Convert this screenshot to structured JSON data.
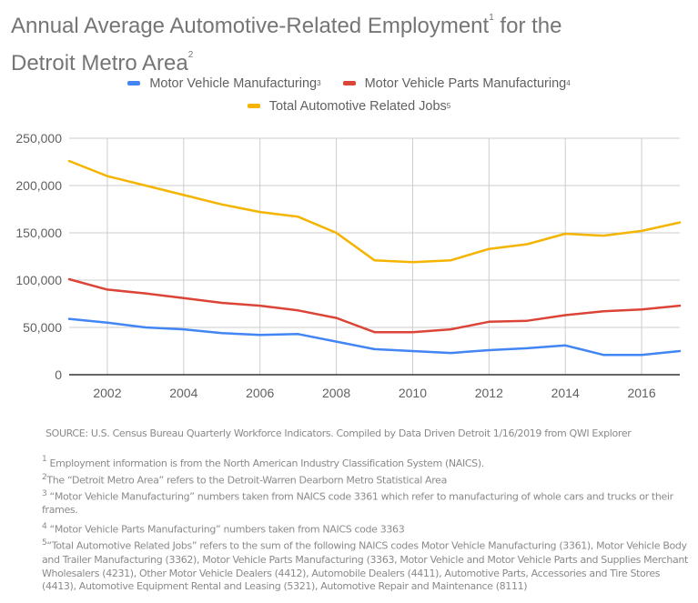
{
  "title": {
    "line1": "Annual Average Automotive-Related Employment",
    "sup1": "1",
    "line1_end": " for the",
    "line2": "Detroit Metro Area",
    "sup2": "2"
  },
  "legend": [
    {
      "label": "Motor Vehicle Manufacturing",
      "sup": "3",
      "color": "#4285f4"
    },
    {
      "label": "Motor Vehicle Parts Manufacturing",
      "sup": "4",
      "color": "#db4437"
    },
    {
      "label": "Total Automotive Related Jobs",
      "sup": "5",
      "color": "#f4b400"
    }
  ],
  "chart_data": {
    "type": "line",
    "title": "Annual Average Automotive-Related Employment for the Detroit Metro Area",
    "xlabel": "",
    "ylabel": "",
    "x": [
      2001,
      2002,
      2003,
      2004,
      2005,
      2006,
      2007,
      2008,
      2009,
      2010,
      2011,
      2012,
      2013,
      2014,
      2015,
      2016,
      2017
    ],
    "xlim": [
      2001,
      2017
    ],
    "ylim": [
      0,
      250000
    ],
    "x_ticks": [
      2002,
      2004,
      2006,
      2008,
      2010,
      2012,
      2014,
      2016
    ],
    "y_ticks": [
      0,
      50000,
      100000,
      150000,
      200000,
      250000
    ],
    "y_tick_labels": [
      "0",
      "50,000",
      "100,000",
      "150,000",
      "200,000",
      "250,000"
    ],
    "grid": true,
    "legend_position": "top",
    "series": [
      {
        "name": "Motor Vehicle Manufacturing",
        "color": "#4285f4",
        "values": [
          59000,
          55000,
          50000,
          48000,
          44000,
          42000,
          43000,
          35000,
          27000,
          25000,
          23000,
          26000,
          28000,
          31000,
          21000,
          21000,
          25000
        ]
      },
      {
        "name": "Motor Vehicle Parts Manufacturing",
        "color": "#db4437",
        "values": [
          101000,
          90000,
          86000,
          81000,
          76000,
          73000,
          68000,
          60000,
          45000,
          45000,
          48000,
          56000,
          57000,
          63000,
          67000,
          69000,
          73000
        ]
      },
      {
        "name": "Total Automotive Related Jobs",
        "color": "#f4b400",
        "values": [
          226000,
          210000,
          200000,
          190000,
          180000,
          172000,
          167000,
          150000,
          121000,
          119000,
          121000,
          133000,
          138000,
          149000,
          147000,
          152000,
          161000
        ]
      }
    ]
  },
  "source": "SOURCE: U.S. Census Bureau Quarterly Workforce Indicators. Compiled by Data Driven Detroit 1/16/2019 from QWI Explorer",
  "footnotes": [
    {
      "num": "1",
      "text": "Employment information is from the North American Industry Classification System (NAICS)."
    },
    {
      "num": "2",
      "text": "The “Detroit Metro Area” refers to the Detroit-Warren Dearborn Metro Statistical Area"
    },
    {
      "num": "3",
      "text": " “Motor Vehicle Manufacturing” numbers taken from NAICS code 3361 which refer to manufacturing of whole cars and trucks or their frames."
    },
    {
      "num": "4",
      "text": " “Motor Vehicle Parts Manufacturing” numbers taken from NAICS code 3363"
    },
    {
      "num": "5",
      "text": "“Total Automotive Related Jobs” refers to the sum of the following NAICS codes Motor Vehicle Manufacturing (3361), Motor Vehicle Body and Trailer Manufacturing (3362), Motor Vehicle Parts Manufacturing (3363, Motor Vehicle and Motor Vehicle Parts and Supplies Merchant Wholesalers (4231), Other Motor Vehicle Dealers (4412), Automobile Dealers (4411), Automotive Parts, Accessories and Tire Stores (4413), Automotive Equipment Rental and Leasing (5321), Automotive Repair and Maintenance (8111)"
    }
  ]
}
